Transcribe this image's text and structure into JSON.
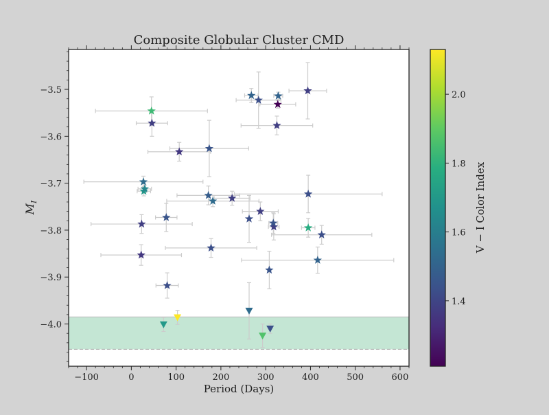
{
  "chart_data": {
    "type": "scatter",
    "title": "Composite Globular Cluster CMD",
    "xlabel": "Period (Days)",
    "ylabel_main": "M",
    "ylabel_sub": "I",
    "colorbar_label": "V − I Color Index",
    "xlim": [
      -140,
      620
    ],
    "ylim": [
      -3.415,
      -4.09
    ],
    "y_inverted": true,
    "x_ticks": [
      -100,
      0,
      100,
      200,
      300,
      400,
      500,
      600
    ],
    "x_tick_labels": [
      "−100",
      "0",
      "100",
      "200",
      "300",
      "400",
      "500",
      "600"
    ],
    "y_ticks": [
      -4.0,
      -3.9,
      -3.8,
      -3.7,
      -3.6,
      -3.5
    ],
    "y_tick_labels": [
      "−4.0",
      "−3.9",
      "−3.8",
      "−3.7",
      "−3.6",
      "−3.5"
    ],
    "colorbar_range": [
      1.21,
      2.13
    ],
    "colorbar_ticks": [
      1.4,
      1.6,
      1.8,
      2.0
    ],
    "colorbar_tick_labels": [
      "1.4",
      "1.6",
      "1.8",
      "2.0"
    ],
    "colormap": "viridis",
    "band": {
      "y_from": -4.054,
      "y_to": -3.985,
      "color": "#c4e6d4"
    },
    "errorbar_color": "#cccccc",
    "stars": [
      {
        "x": 80,
        "y": -3.918,
        "xerr": 25,
        "yerr": 0.027,
        "c": 1.43
      },
      {
        "x": 22,
        "y": -3.853,
        "xerr": 90,
        "yerr": 0.022,
        "c": 1.36
      },
      {
        "x": 178,
        "y": -3.838,
        "xerr": 102,
        "yerr": 0.02,
        "c": 1.43
      },
      {
        "x": 308,
        "y": -3.885,
        "xerr": 0,
        "yerr": 0.04,
        "c": 1.45
      },
      {
        "x": 416,
        "y": -3.864,
        "xerr": 170,
        "yerr": 0.028,
        "c": 1.5
      },
      {
        "x": 425,
        "y": -3.81,
        "xerr": 112,
        "yerr": 0.02,
        "c": 1.43
      },
      {
        "x": 395,
        "y": -3.795,
        "xerr": 15,
        "yerr": 0.02,
        "c": 1.78
      },
      {
        "x": 318,
        "y": -3.793,
        "xerr": 12,
        "yerr": 0.028,
        "c": 1.38
      },
      {
        "x": 317,
        "y": -3.785,
        "xerr": 10,
        "yerr": 0.022,
        "c": 1.45
      },
      {
        "x": 23,
        "y": -3.787,
        "xerr": 113,
        "yerr": 0.02,
        "c": 1.38
      },
      {
        "x": 263,
        "y": -3.776,
        "xerr": 0,
        "yerr": 0.05,
        "c": 1.43
      },
      {
        "x": 78,
        "y": -3.773,
        "xerr": 24,
        "yerr": 0.03,
        "c": 1.45
      },
      {
        "x": 288,
        "y": -3.76,
        "xerr": 40,
        "yerr": 0.02,
        "c": 1.38
      },
      {
        "x": 182,
        "y": -3.738,
        "xerr": 103,
        "yerr": 0.012,
        "c": 1.53
      },
      {
        "x": 225,
        "y": -3.732,
        "xerr": 40,
        "yerr": 0.015,
        "c": 1.38
      },
      {
        "x": 172,
        "y": -3.726,
        "xerr": 70,
        "yerr": 0.02,
        "c": 1.48
      },
      {
        "x": 395,
        "y": -3.723,
        "xerr": 165,
        "yerr": 0.04,
        "c": 1.43
      },
      {
        "x": 28,
        "y": -3.717,
        "xerr": 15,
        "yerr": 0.01,
        "c": 1.7
      },
      {
        "x": 30,
        "y": -3.712,
        "xerr": 15,
        "yerr": 0.008,
        "c": 1.63
      },
      {
        "x": 27,
        "y": -3.697,
        "xerr": 133,
        "yerr": 0.012,
        "c": 1.53
      },
      {
        "x": 107,
        "y": -3.633,
        "xerr": 70,
        "yerr": 0.02,
        "c": 1.36
      },
      {
        "x": 174,
        "y": -3.626,
        "xerr": 88,
        "yerr": 0.06,
        "c": 1.45
      },
      {
        "x": 46,
        "y": -3.572,
        "xerr": 35,
        "yerr": 0.028,
        "c": 1.38
      },
      {
        "x": 325,
        "y": -3.577,
        "xerr": 80,
        "yerr": 0.02,
        "c": 1.38
      },
      {
        "x": 45,
        "y": -3.546,
        "xerr": 125,
        "yerr": 0.03,
        "c": 1.83
      },
      {
        "x": 327,
        "y": -3.532,
        "xerr": 40,
        "yerr": 0.008,
        "c": 1.21
      },
      {
        "x": 284,
        "y": -3.523,
        "xerr": 50,
        "yerr": 0.06,
        "c": 1.43
      },
      {
        "x": 268,
        "y": -3.513,
        "xerr": 15,
        "yerr": 0.015,
        "c": 1.5
      },
      {
        "x": 328,
        "y": -3.514,
        "xerr": 10,
        "yerr": 0.008,
        "c": 1.5
      },
      {
        "x": 394,
        "y": -3.503,
        "xerr": 42,
        "yerr": 0.06,
        "c": 1.38
      }
    ],
    "triangles": [
      {
        "x": 72,
        "y": -4.001,
        "xerr": 0,
        "yerr": 0.015,
        "c": 1.7
      },
      {
        "x": 103,
        "y": -3.986,
        "xerr": 0,
        "yerr": 0.015,
        "c": 2.13
      },
      {
        "x": 293,
        "y": -4.025,
        "xerr": 0,
        "yerr": 0.025,
        "c": 1.87
      },
      {
        "x": 310,
        "y": -4.01,
        "xerr": 0,
        "yerr": 0.01,
        "c": 1.43
      },
      {
        "x": 263,
        "y": -3.972,
        "xerr": 0,
        "yerr": 0.06,
        "c": 1.53
      }
    ]
  }
}
